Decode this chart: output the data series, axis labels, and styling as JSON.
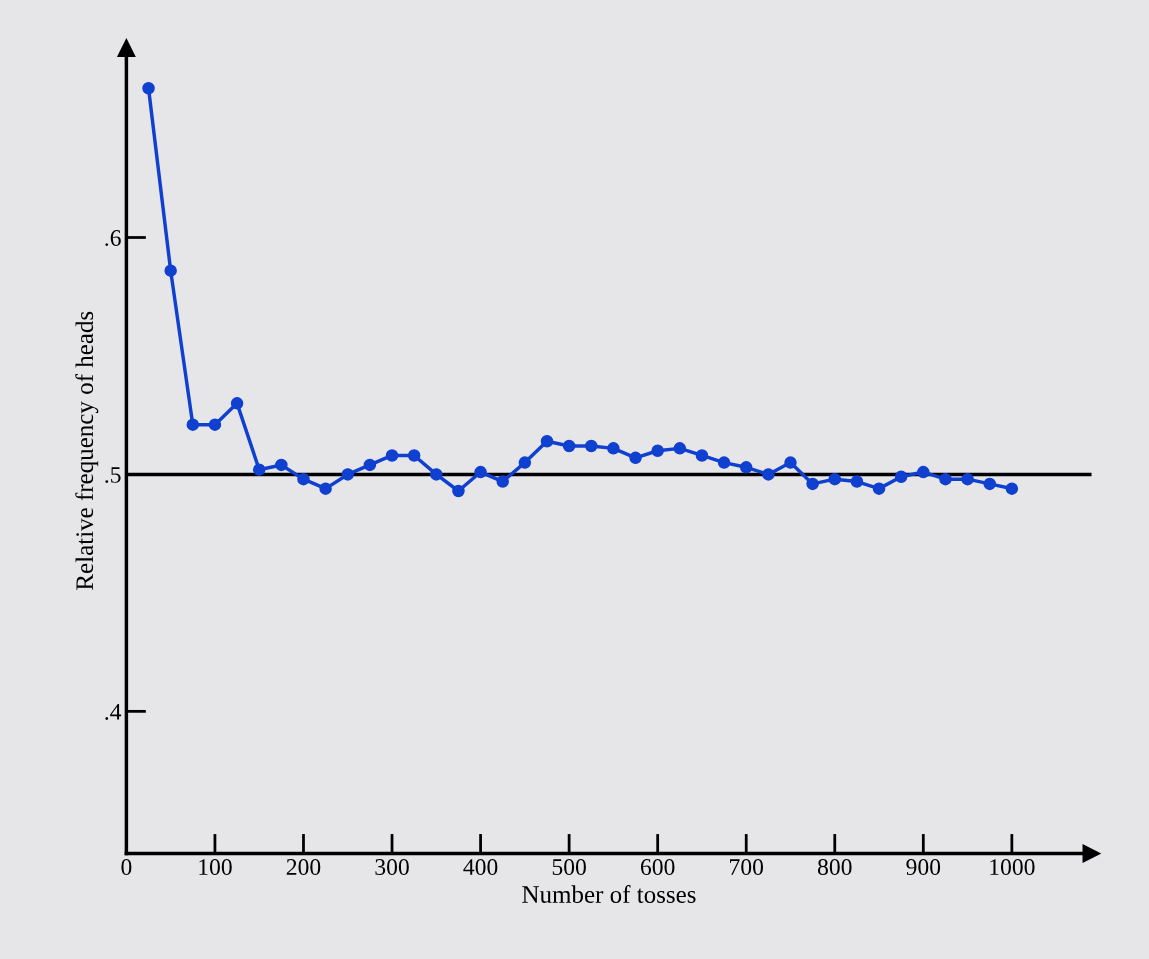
{
  "chart_data": {
    "type": "line",
    "xlabel": "Number of tosses",
    "ylabel": "Relative frequency of heads",
    "x": [
      25,
      50,
      75,
      100,
      125,
      150,
      175,
      200,
      225,
      250,
      275,
      300,
      325,
      350,
      375,
      400,
      425,
      450,
      475,
      500,
      525,
      550,
      575,
      600,
      625,
      650,
      675,
      700,
      725,
      750,
      775,
      800,
      825,
      850,
      875,
      900,
      925,
      950,
      975,
      1000
    ],
    "series": [
      {
        "color": "#1040d0",
        "values": [
          0.663,
          0.586,
          0.521,
          0.521,
          0.53,
          0.502,
          0.504,
          0.498,
          0.494,
          0.5,
          0.504,
          0.508,
          0.508,
          0.5,
          0.493,
          0.501,
          0.497,
          0.505,
          0.514,
          0.512,
          0.512,
          0.511,
          0.507,
          0.51,
          0.511,
          0.508,
          0.505,
          0.503,
          0.5,
          0.505,
          0.496,
          0.498,
          0.497,
          0.494,
          0.499,
          0.501,
          0.498,
          0.498,
          0.496,
          0.494
        ]
      }
    ],
    "marker": "circle",
    "line_style": "solid",
    "xlim": [
      0,
      1090
    ],
    "xticks": [
      0,
      100,
      200,
      300,
      400,
      500,
      600,
      700,
      800,
      900,
      1000
    ],
    "ylim": [
      0.34,
      0.68
    ],
    "yticks": [
      {
        "value": 0.4,
        "label": ".4"
      },
      {
        "value": 0.5,
        "label": ".5"
      },
      {
        "value": 0.6,
        "label": ".6"
      }
    ],
    "ref_lines": [
      {
        "axis": "y",
        "value": 0.5,
        "label": null,
        "color": "#000000"
      }
    ],
    "grid": false,
    "legend": false
  }
}
